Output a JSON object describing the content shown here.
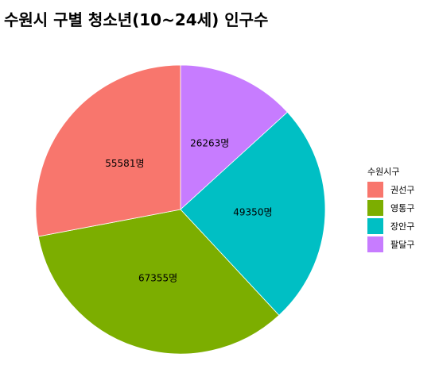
{
  "chart_data": {
    "type": "pie",
    "title": "수원시 구별 청소년(10~24세) 인구수",
    "legend_title": "수원시구",
    "legend_position": "right",
    "value_suffix": "명",
    "slices": [
      {
        "name": "팔달구",
        "value": 26263,
        "color": "#C77CFF"
      },
      {
        "name": "장안구",
        "value": 49350,
        "color": "#00BFC4"
      },
      {
        "name": "영통구",
        "value": 67355,
        "color": "#7CAE00"
      },
      {
        "name": "권선구",
        "value": 55581,
        "color": "#F8766D"
      }
    ],
    "legend_order": [
      "권선구",
      "영통구",
      "장안구",
      "팔달구"
    ]
  }
}
